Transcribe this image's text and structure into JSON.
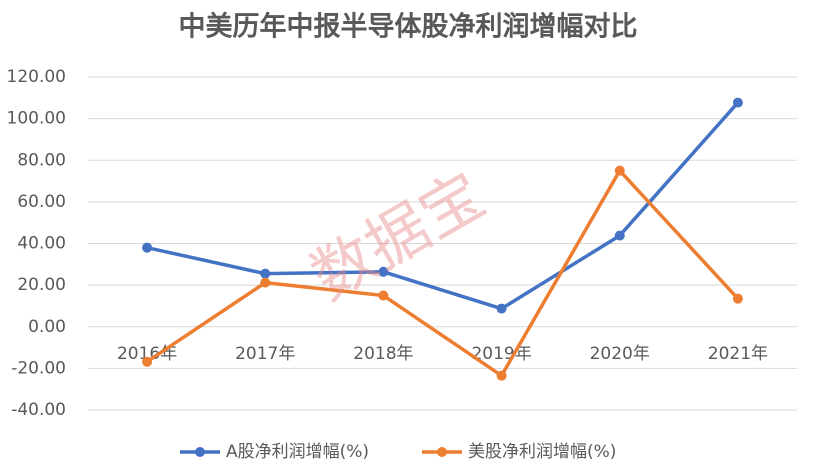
{
  "chart_data": {
    "type": "line",
    "title": "中美历年中报半导体股净利润增幅对比",
    "watermark": "数据宝",
    "categories": [
      "2016年",
      "2017年",
      "2018年",
      "2019年",
      "2020年",
      "2021年"
    ],
    "series": [
      {
        "name": "A股净利润增幅(%)",
        "color": "#4472c4",
        "values": [
          38,
          25.5,
          26.4,
          8.7,
          43.8,
          107.7
        ]
      },
      {
        "name": "美股净利润增幅(%)",
        "color": "#ed7d31",
        "values": [
          -16.8,
          21.2,
          15,
          -23.5,
          75,
          13.5
        ]
      }
    ],
    "ylim": [
      -40,
      120
    ],
    "yticks": [
      {
        "value": -40,
        "label": "-40.00"
      },
      {
        "value": -20,
        "label": "-20.00"
      },
      {
        "value": 0,
        "label": "0.00"
      },
      {
        "value": 20,
        "label": "20.00"
      },
      {
        "value": 40,
        "label": "40.00"
      },
      {
        "value": 60,
        "label": "60.00"
      },
      {
        "value": 80,
        "label": "80.00"
      },
      {
        "value": 100,
        "label": "100.00"
      },
      {
        "value": 120,
        "label": "120.00"
      }
    ],
    "grid": true,
    "legend": "bottom"
  }
}
